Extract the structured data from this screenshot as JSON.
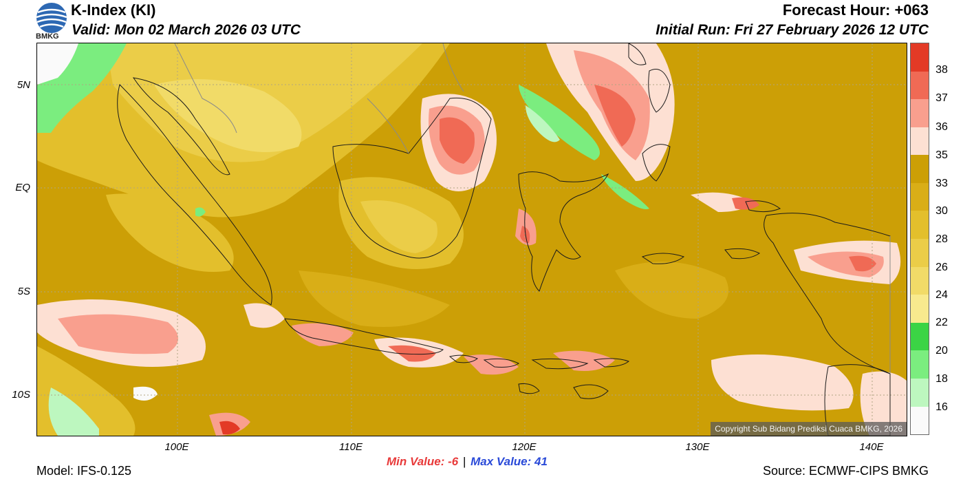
{
  "header": {
    "title": "K-Index (KI)",
    "valid": "Valid: Mon 02 March 2026 03 UTC",
    "forecast_hour": "Forecast Hour: +063",
    "initial_run": "Initial Run: Fri 27 February 2026 12 UTC",
    "logo_text": "BMKG"
  },
  "map": {
    "lat_labels": [
      "5N",
      "EQ",
      "5S",
      "10S"
    ],
    "lon_labels": [
      "100E",
      "110E",
      "120E",
      "130E",
      "140E"
    ],
    "copyright": "Copyright Sub Bidang Prediksi Cuaca BMKG, 2026"
  },
  "colorbar": {
    "labels": [
      "38",
      "37",
      "36",
      "35",
      "33",
      "30",
      "28",
      "26",
      "24",
      "22",
      "20",
      "18",
      "16"
    ],
    "colors": [
      "#e33a26",
      "#f06a55",
      "#f99f8e",
      "#fde0d3",
      "#cc9f06",
      "#d9ae17",
      "#e3bf2c",
      "#ebcd48",
      "#f1db68",
      "#f8ea8e",
      "#3bd445",
      "#7bed7f",
      "#bdf7bf",
      "#fafafa"
    ]
  },
  "footer": {
    "model": "Model: IFS-0.125",
    "min_value": "Min Value:  -6",
    "separator": "|",
    "max_value": "Max Value:  41",
    "source": "Source: ECMWF-CIPS BMKG"
  },
  "style": {
    "min_color": "#e83a3a",
    "max_color": "#2a4ad8"
  }
}
